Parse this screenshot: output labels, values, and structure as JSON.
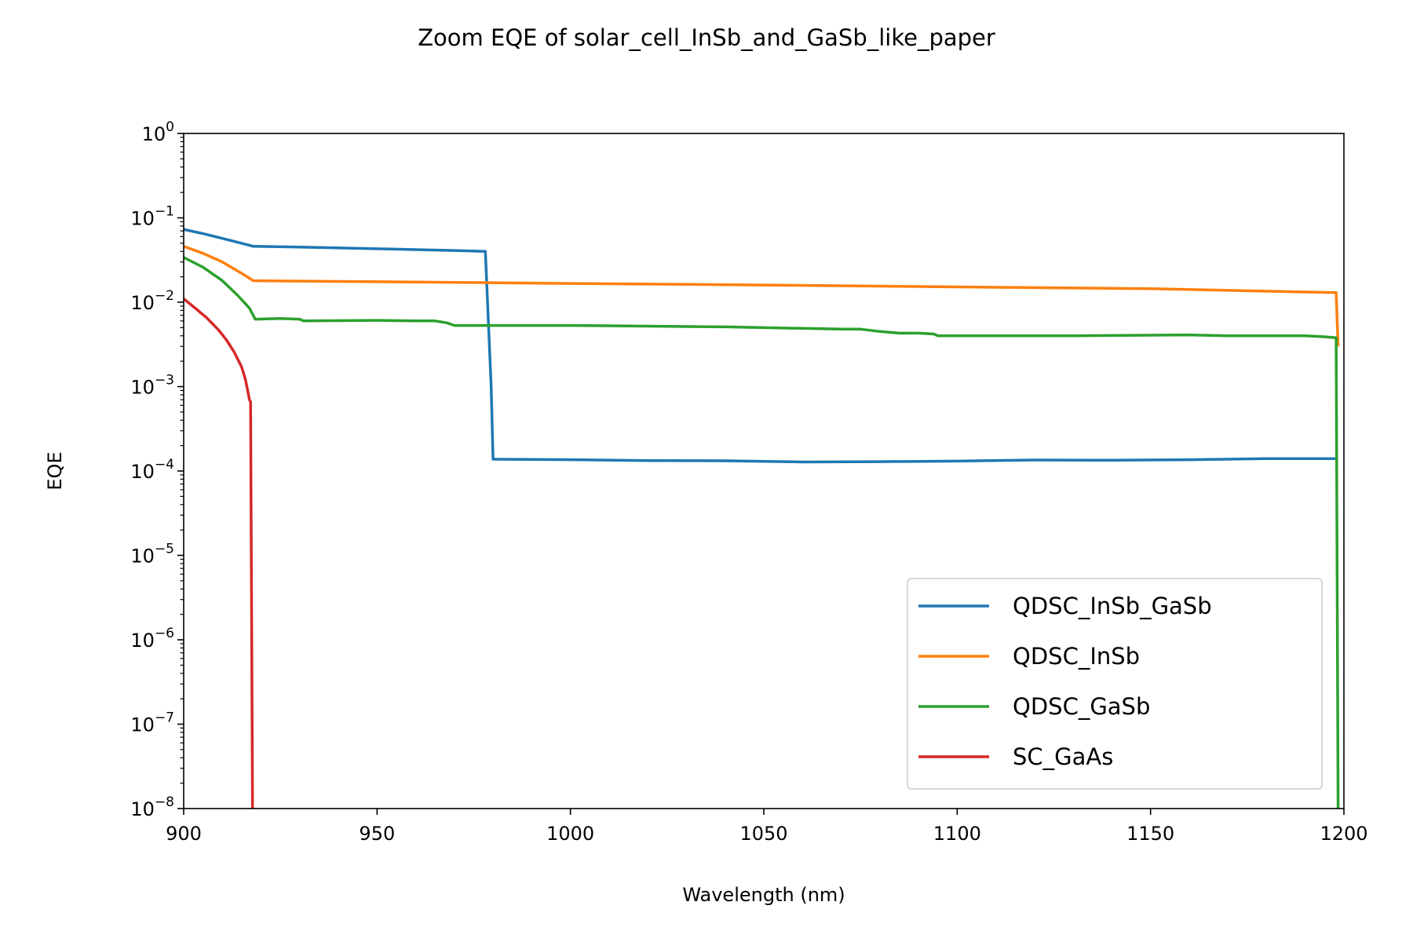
{
  "chart_data": {
    "type": "line",
    "title": "Zoom EQE of solar_cell_InSb_and_GaSb_like_paper",
    "xlabel": "Wavelength (nm)",
    "ylabel": "EQE",
    "xlim": [
      900,
      1200
    ],
    "ylim": [
      1e-08,
      1
    ],
    "yscale": "log",
    "xticks": [
      900,
      950,
      1000,
      1050,
      1100,
      1150,
      1200
    ],
    "ytick_exponents": [
      0,
      -1,
      -2,
      -3,
      -4,
      -5,
      -6,
      -7,
      -8
    ],
    "grid": false,
    "legend_position": "lower-right",
    "series": [
      {
        "name": "QDSC_InSb_GaSb",
        "color": "#1f77b4",
        "x": [
          900,
          905,
          910,
          915,
          918,
          930,
          950,
          970,
          978,
          979.5,
          980,
          1000,
          1020,
          1040,
          1060,
          1080,
          1100,
          1120,
          1140,
          1160,
          1180,
          1198
        ],
        "y": [
          0.073,
          0.065,
          0.057,
          0.05,
          0.046,
          0.045,
          0.043,
          0.041,
          0.04,
          0.001,
          0.000138,
          0.000136,
          0.000133,
          0.000132,
          0.000128,
          0.000129,
          0.000131,
          0.000135,
          0.000134,
          0.000136,
          0.00014,
          0.00014
        ]
      },
      {
        "name": "QDSC_InSb",
        "color": "#ff7f0e",
        "x": [
          900,
          905,
          910,
          915,
          918,
          950,
          1000,
          1050,
          1100,
          1150,
          1198,
          1198.5
        ],
        "y": [
          0.046,
          0.038,
          0.03,
          0.022,
          0.018,
          0.0175,
          0.0167,
          0.016,
          0.0152,
          0.0145,
          0.013,
          0.003
        ]
      },
      {
        "name": "QDSC_GaSb",
        "color": "#2ca02c",
        "x": [
          900,
          905,
          910,
          914,
          917,
          918.5,
          925,
          930,
          931,
          950,
          960,
          965,
          968,
          970,
          1000,
          1020,
          1040,
          1060,
          1070,
          1075,
          1080,
          1085,
          1090,
          1094,
          1095,
          1130,
          1160,
          1170,
          1190,
          1195,
          1198,
          1198.5
        ],
        "y": [
          0.034,
          0.026,
          0.018,
          0.012,
          0.0085,
          0.0063,
          0.0064,
          0.0063,
          0.006,
          0.0061,
          0.006,
          0.006,
          0.0057,
          0.0053,
          0.0053,
          0.0052,
          0.0051,
          0.0049,
          0.0048,
          0.0048,
          0.0045,
          0.0043,
          0.0043,
          0.0042,
          0.004,
          0.004,
          0.0041,
          0.004,
          0.004,
          0.0039,
          0.0038,
          1e-08
        ]
      },
      {
        "name": "SC_GaAs",
        "color": "#d62728",
        "x": [
          900,
          903,
          906,
          909,
          911,
          913,
          915,
          916,
          917,
          917.3,
          917.8
        ],
        "y": [
          0.011,
          0.0085,
          0.0065,
          0.0047,
          0.0036,
          0.0026,
          0.0017,
          0.0012,
          0.0007,
          0.00066,
          1e-08
        ]
      }
    ]
  }
}
